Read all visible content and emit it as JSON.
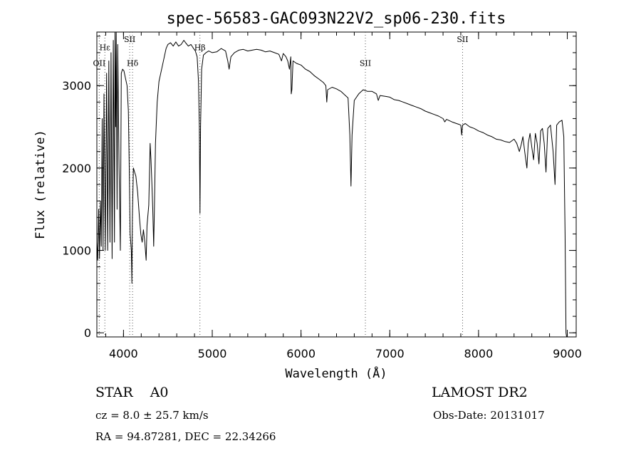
{
  "chart_data": {
    "type": "line",
    "title": "spec-56583-GAC093N22V2_sp06-230.fits",
    "xlabel": "Wavelength (Å)",
    "ylabel": "Flux (relative)",
    "xlim": [
      3700,
      9100
    ],
    "ylim": [
      -50,
      3650
    ],
    "x_ticks": [
      4000,
      5000,
      6000,
      7000,
      8000,
      9000
    ],
    "y_ticks": [
      0,
      1000,
      2000,
      3000
    ],
    "x_minor_step": 200,
    "y_minor_step": 200,
    "grid": false,
    "series": [
      {
        "name": "flux",
        "points": [
          [
            3700,
            1100
          ],
          [
            3710,
            880
          ],
          [
            3720,
            1500
          ],
          [
            3730,
            900
          ],
          [
            3740,
            1600
          ],
          [
            3750,
            1050
          ],
          [
            3760,
            2600
          ],
          [
            3770,
            1000
          ],
          [
            3780,
            2900
          ],
          [
            3795,
            1000
          ],
          [
            3810,
            3150
          ],
          [
            3822,
            1000
          ],
          [
            3835,
            3300
          ],
          [
            3848,
            1100
          ],
          [
            3860,
            3400
          ],
          [
            3872,
            900
          ],
          [
            3885,
            3550
          ],
          [
            3898,
            1100
          ],
          [
            3905,
            3650
          ],
          [
            3912,
            2500
          ],
          [
            3918,
            3650
          ],
          [
            3928,
            1500
          ],
          [
            3935,
            3500
          ],
          [
            3950,
            2000
          ],
          [
            3965,
            1000
          ],
          [
            3975,
            3150
          ],
          [
            3990,
            3200
          ],
          [
            4005,
            3180
          ],
          [
            4020,
            3100
          ],
          [
            4040,
            3000
          ],
          [
            4055,
            2700
          ],
          [
            4065,
            2000
          ],
          [
            4075,
            1200
          ],
          [
            4088,
            1000
          ],
          [
            4095,
            600
          ],
          [
            4100,
            1400
          ],
          [
            4112,
            2000
          ],
          [
            4125,
            1950
          ],
          [
            4140,
            1900
          ],
          [
            4160,
            1700
          ],
          [
            4180,
            1400
          ],
          [
            4195,
            1200
          ],
          [
            4210,
            1100
          ],
          [
            4225,
            1250
          ],
          [
            4240,
            1100
          ],
          [
            4255,
            880
          ],
          [
            4265,
            1300
          ],
          [
            4285,
            1550
          ],
          [
            4300,
            2300
          ],
          [
            4310,
            2100
          ],
          [
            4320,
            1800
          ],
          [
            4330,
            1500
          ],
          [
            4340,
            1050
          ],
          [
            4348,
            1500
          ],
          [
            4360,
            2300
          ],
          [
            4380,
            2800
          ],
          [
            4400,
            3050
          ],
          [
            4420,
            3150
          ],
          [
            4440,
            3250
          ],
          [
            4460,
            3350
          ],
          [
            4480,
            3450
          ],
          [
            4500,
            3500
          ],
          [
            4530,
            3520
          ],
          [
            4560,
            3480
          ],
          [
            4590,
            3530
          ],
          [
            4620,
            3480
          ],
          [
            4650,
            3500
          ],
          [
            4680,
            3550
          ],
          [
            4700,
            3520
          ],
          [
            4730,
            3480
          ],
          [
            4760,
            3500
          ],
          [
            4790,
            3450
          ],
          [
            4810,
            3420
          ],
          [
            4830,
            3350
          ],
          [
            4845,
            3050
          ],
          [
            4855,
            2500
          ],
          [
            4862,
            1450
          ],
          [
            4868,
            2500
          ],
          [
            4880,
            3200
          ],
          [
            4900,
            3370
          ],
          [
            4930,
            3400
          ],
          [
            4960,
            3420
          ],
          [
            5000,
            3400
          ],
          [
            5050,
            3410
          ],
          [
            5100,
            3450
          ],
          [
            5150,
            3420
          ],
          [
            5175,
            3300
          ],
          [
            5190,
            3200
          ],
          [
            5210,
            3350
          ],
          [
            5250,
            3400
          ],
          [
            5300,
            3430
          ],
          [
            5350,
            3440
          ],
          [
            5400,
            3420
          ],
          [
            5450,
            3430
          ],
          [
            5500,
            3440
          ],
          [
            5550,
            3430
          ],
          [
            5600,
            3410
          ],
          [
            5650,
            3420
          ],
          [
            5700,
            3400
          ],
          [
            5750,
            3380
          ],
          [
            5780,
            3300
          ],
          [
            5800,
            3390
          ],
          [
            5830,
            3350
          ],
          [
            5850,
            3300
          ],
          [
            5870,
            3200
          ],
          [
            5885,
            3350
          ],
          [
            5890,
            2900
          ],
          [
            5897,
            2950
          ],
          [
            5910,
            3300
          ],
          [
            5950,
            3270
          ],
          [
            6000,
            3250
          ],
          [
            6050,
            3200
          ],
          [
            6100,
            3170
          ],
          [
            6150,
            3120
          ],
          [
            6200,
            3080
          ],
          [
            6250,
            3040
          ],
          [
            6280,
            3000
          ],
          [
            6290,
            2800
          ],
          [
            6300,
            2950
          ],
          [
            6350,
            2980
          ],
          [
            6400,
            2960
          ],
          [
            6450,
            2930
          ],
          [
            6500,
            2880
          ],
          [
            6530,
            2850
          ],
          [
            6550,
            2400
          ],
          [
            6563,
            1780
          ],
          [
            6575,
            2400
          ],
          [
            6600,
            2820
          ],
          [
            6650,
            2900
          ],
          [
            6700,
            2950
          ],
          [
            6750,
            2930
          ],
          [
            6800,
            2930
          ],
          [
            6850,
            2900
          ],
          [
            6870,
            2820
          ],
          [
            6890,
            2880
          ],
          [
            6950,
            2870
          ],
          [
            7000,
            2860
          ],
          [
            7050,
            2830
          ],
          [
            7100,
            2820
          ],
          [
            7150,
            2800
          ],
          [
            7200,
            2780
          ],
          [
            7250,
            2760
          ],
          [
            7300,
            2740
          ],
          [
            7350,
            2720
          ],
          [
            7400,
            2690
          ],
          [
            7450,
            2670
          ],
          [
            7500,
            2650
          ],
          [
            7550,
            2630
          ],
          [
            7600,
            2600
          ],
          [
            7620,
            2560
          ],
          [
            7640,
            2590
          ],
          [
            7700,
            2560
          ],
          [
            7750,
            2540
          ],
          [
            7780,
            2530
          ],
          [
            7800,
            2520
          ],
          [
            7810,
            2400
          ],
          [
            7820,
            2520
          ],
          [
            7850,
            2540
          ],
          [
            7900,
            2500
          ],
          [
            7950,
            2480
          ],
          [
            8000,
            2450
          ],
          [
            8050,
            2430
          ],
          [
            8100,
            2400
          ],
          [
            8150,
            2380
          ],
          [
            8200,
            2350
          ],
          [
            8250,
            2340
          ],
          [
            8300,
            2320
          ],
          [
            8350,
            2310
          ],
          [
            8400,
            2350
          ],
          [
            8430,
            2300
          ],
          [
            8460,
            2200
          ],
          [
            8480,
            2280
          ],
          [
            8500,
            2380
          ],
          [
            8520,
            2200
          ],
          [
            8545,
            2000
          ],
          [
            8560,
            2300
          ],
          [
            8580,
            2420
          ],
          [
            8600,
            2250
          ],
          [
            8620,
            2100
          ],
          [
            8640,
            2420
          ],
          [
            8660,
            2300
          ],
          [
            8680,
            2050
          ],
          [
            8700,
            2450
          ],
          [
            8720,
            2480
          ],
          [
            8740,
            2300
          ],
          [
            8760,
            1950
          ],
          [
            8780,
            2480
          ],
          [
            8810,
            2520
          ],
          [
            8840,
            2200
          ],
          [
            8862,
            1800
          ],
          [
            8880,
            2520
          ],
          [
            8910,
            2560
          ],
          [
            8940,
            2580
          ],
          [
            8960,
            2380
          ],
          [
            8975,
            1200
          ],
          [
            8985,
            0
          ],
          [
            8992,
            -50
          ]
        ]
      }
    ],
    "lines": [
      {
        "label": "OII",
        "x": 3727,
        "label_y": 3240
      },
      {
        "label": "Hε",
        "x": 3790,
        "label_y": 3430
      },
      {
        "label": "SII",
        "x": 4070,
        "label_y": 3530
      },
      {
        "label": "Hδ",
        "x": 4102,
        "label_y": 3240
      },
      {
        "label": "Hβ",
        "x": 4861,
        "label_y": 3430
      },
      {
        "label": "SII",
        "x": 6725,
        "label_y": 3240
      },
      {
        "label": "SII",
        "x": 7820,
        "label_y": 3530
      }
    ]
  },
  "info": {
    "object_type": "STAR",
    "subclass": "A0",
    "survey": "LAMOST DR2",
    "cz": "cz = 8.0 ± 25.7 km/s",
    "obs_date": "Obs-Date: 20131017",
    "coords": "RA =  94.87281, DEC =  22.34266"
  }
}
